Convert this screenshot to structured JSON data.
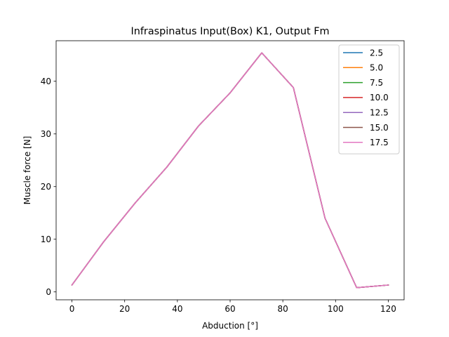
{
  "chart_data": {
    "type": "line",
    "title": "Infraspinatus Input(Box) K1, Output Fm",
    "xlabel": "Abduction [°]",
    "ylabel": "Muscle force [N]",
    "xlim": [
      -6,
      126
    ],
    "ylim": [
      -1.5,
      47.7
    ],
    "xticks": [
      0,
      20,
      40,
      60,
      80,
      100,
      120
    ],
    "yticks": [
      0,
      10,
      20,
      30,
      40
    ],
    "x": [
      0,
      12,
      24,
      36,
      48,
      60,
      72,
      84,
      96,
      108,
      120
    ],
    "grid": false,
    "legend_position": "upper-right",
    "series": [
      {
        "name": "2.5",
        "color": "#1f77b4",
        "values": [
          1.3,
          9.5,
          16.9,
          23.7,
          31.5,
          37.8,
          45.4,
          38.8,
          14.0,
          0.8,
          1.3
        ]
      },
      {
        "name": "5.0",
        "color": "#ff7f0e",
        "values": [
          1.3,
          9.5,
          16.9,
          23.7,
          31.5,
          37.8,
          45.4,
          38.8,
          14.0,
          0.8,
          1.3
        ]
      },
      {
        "name": "7.5",
        "color": "#2ca02c",
        "values": [
          1.3,
          9.5,
          16.9,
          23.7,
          31.5,
          37.8,
          45.4,
          38.8,
          14.0,
          0.8,
          1.3
        ]
      },
      {
        "name": "10.0",
        "color": "#d62728",
        "values": [
          1.3,
          9.5,
          16.9,
          23.7,
          31.5,
          37.8,
          45.4,
          38.8,
          14.0,
          0.8,
          1.3
        ]
      },
      {
        "name": "12.5",
        "color": "#9467bd",
        "values": [
          1.3,
          9.5,
          16.9,
          23.7,
          31.5,
          37.8,
          45.4,
          38.8,
          14.0,
          0.8,
          1.3
        ]
      },
      {
        "name": "15.0",
        "color": "#8c564b",
        "values": [
          1.3,
          9.5,
          16.9,
          23.7,
          31.5,
          37.8,
          45.4,
          38.8,
          14.0,
          0.8,
          1.3
        ]
      },
      {
        "name": "17.5",
        "color": "#e377c2",
        "values": [
          1.3,
          9.5,
          16.9,
          23.7,
          31.5,
          37.8,
          45.4,
          38.8,
          14.0,
          0.8,
          1.3
        ]
      }
    ]
  }
}
